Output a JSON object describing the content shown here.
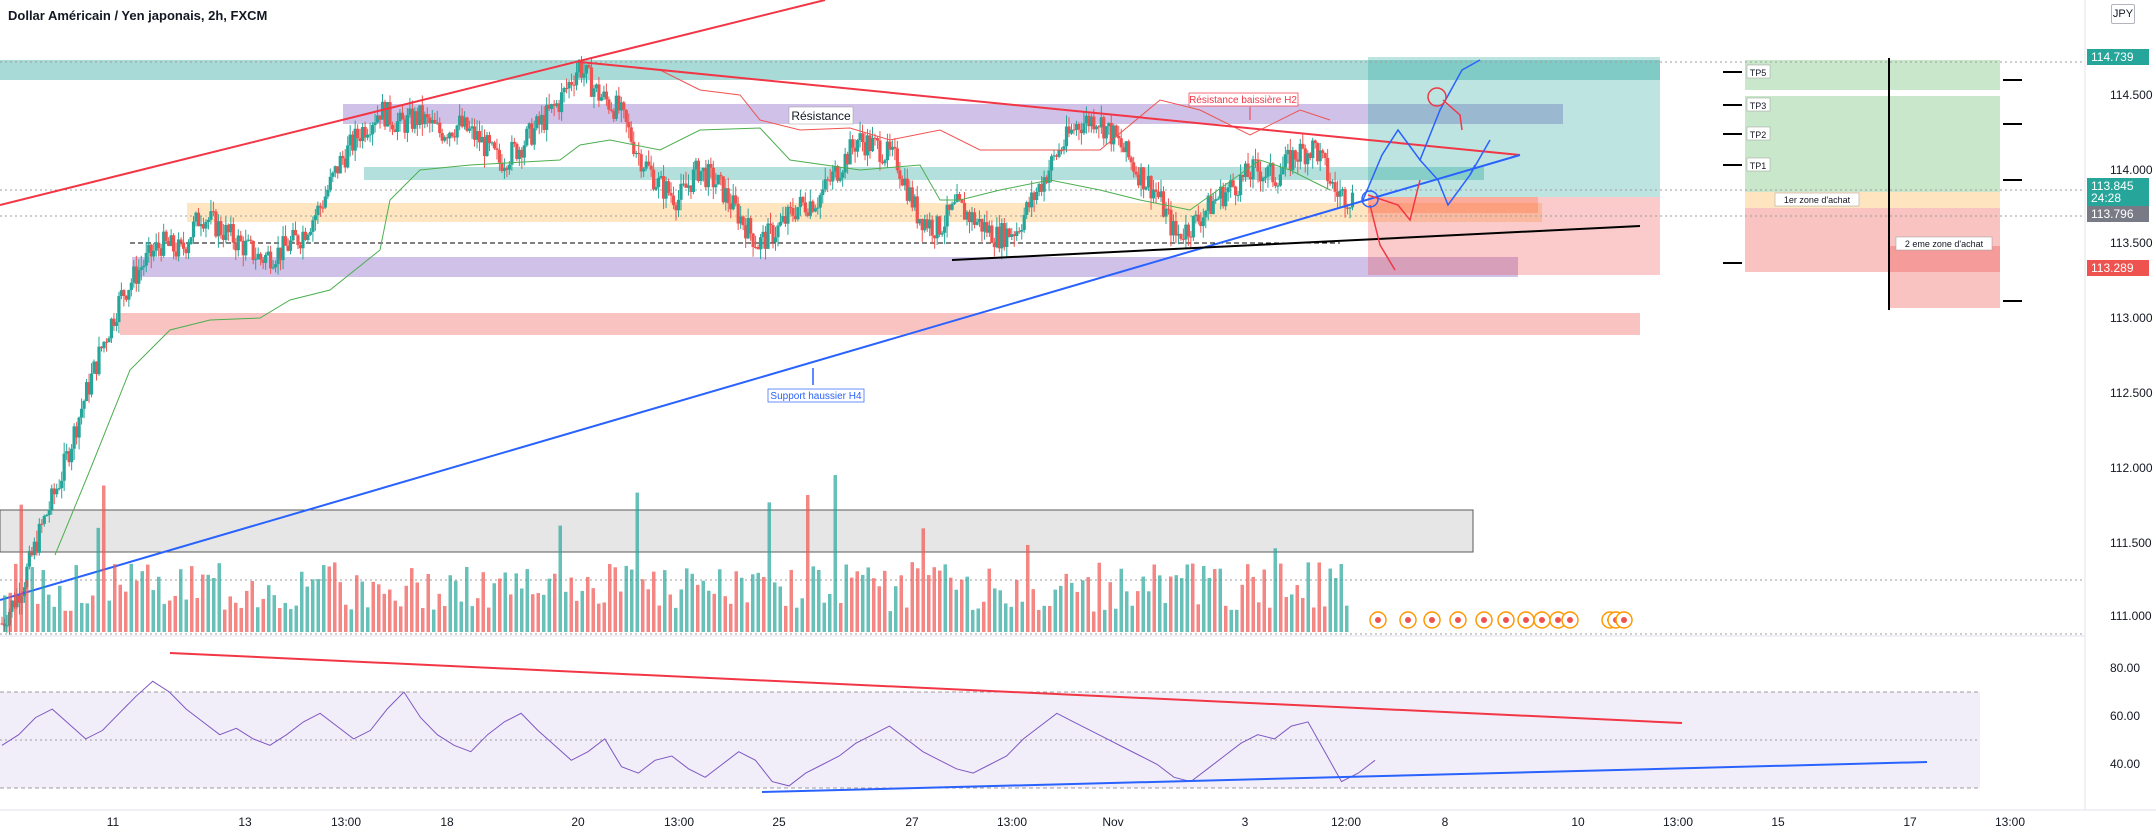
{
  "header": {
    "title": "Dollar Américain / Yen japonais, 2h, FXCM",
    "currency": "JPY"
  },
  "chart_data": [
    {
      "type": "candlestick",
      "title": "Dollar Américain / Yen japonais, 2h, FXCM",
      "x_tick_labels": [
        "11",
        "13",
        "13:00",
        "18",
        "20",
        "13:00",
        "25",
        "27",
        "13:00",
        "Nov",
        "3",
        "12:00",
        "8",
        "10",
        "13:00",
        "15",
        "17",
        "13:00"
      ],
      "y_tick_labels": [
        "114.500",
        "114.000",
        "113.500",
        "113.000",
        "112.500",
        "112.000",
        "111.500",
        "111.000"
      ],
      "ylim": [
        110.95,
        115.1
      ],
      "price_tags": [
        {
          "value": "114.739",
          "color": "#26a69a"
        },
        {
          "value": "113.845",
          "color": "#26a69a"
        },
        {
          "value": "24:28",
          "color": "#26a69a"
        },
        {
          "value": "113.796",
          "color": "#787b86"
        },
        {
          "value": "113.289",
          "color": "#ef5350"
        }
      ],
      "close_path": [
        110.95,
        111.2,
        111.6,
        111.95,
        112.4,
        112.8,
        113.15,
        113.35,
        113.5,
        113.45,
        113.7,
        113.6,
        113.5,
        113.4,
        113.45,
        113.55,
        113.75,
        114.05,
        114.25,
        114.4,
        114.3,
        114.35,
        114.25,
        114.3,
        114.2,
        114.05,
        114.15,
        114.3,
        114.45,
        114.7,
        114.5,
        114.4,
        114.1,
        113.9,
        113.8,
        114.0,
        113.9,
        113.7,
        113.5,
        113.6,
        113.75,
        113.8,
        114.0,
        114.2,
        114.15,
        114.05,
        113.7,
        113.6,
        113.75,
        113.65,
        113.55,
        113.6,
        113.85,
        114.1,
        114.3,
        114.35,
        114.2,
        114.0,
        113.85,
        113.55,
        113.65,
        113.8,
        113.9,
        114.0,
        113.95,
        114.1,
        114.15,
        113.85,
        113.8
      ],
      "volume_labels": [],
      "annotations": [
        "Résistance",
        "Résistance baissière H2",
        "Support haussier H4",
        "TP5",
        "TP3",
        "TP2",
        "TP1",
        "1er zone d'achat",
        "2 eme zone d'achat"
      ]
    },
    {
      "type": "line",
      "title": "",
      "y_tick_labels": [
        "80.00",
        "60.00",
        "40.00"
      ],
      "ylim": [
        25,
        90
      ],
      "series": [
        {
          "values": [
            55,
            60,
            68,
            72,
            65,
            58,
            62,
            70,
            78,
            85,
            80,
            72,
            66,
            60,
            63,
            58,
            55,
            60,
            66,
            70,
            64,
            58,
            62,
            72,
            80,
            68,
            60,
            55,
            52,
            60,
            66,
            70,
            62,
            55,
            48,
            52,
            58,
            45,
            42,
            48,
            50,
            44,
            40,
            46,
            52,
            48,
            38,
            36,
            42,
            46,
            50,
            56,
            60,
            64,
            58,
            52,
            48,
            44,
            42,
            46,
            50,
            58,
            64,
            70,
            66,
            62,
            58,
            54,
            50,
            46,
            40,
            38,
            44,
            50,
            56,
            60,
            58,
            64,
            66,
            52,
            38,
            42,
            48
          ]
        }
      ]
    }
  ],
  "colors": {
    "bull": "#26a69a",
    "bear": "#ef5350",
    "rsi": "#7e57c2",
    "blue_line": "#2962ff",
    "red_line": "#f23645"
  }
}
